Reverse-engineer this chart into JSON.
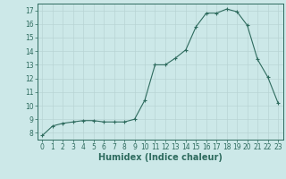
{
  "x": [
    0,
    1,
    2,
    3,
    4,
    5,
    6,
    7,
    8,
    9,
    10,
    11,
    12,
    13,
    14,
    15,
    16,
    17,
    18,
    19,
    20,
    21,
    22,
    23
  ],
  "y": [
    7.8,
    8.5,
    8.7,
    8.8,
    8.9,
    8.9,
    8.8,
    8.8,
    8.8,
    9.0,
    10.4,
    13.0,
    13.0,
    13.5,
    14.1,
    15.8,
    16.8,
    16.8,
    17.1,
    16.9,
    15.9,
    13.4,
    12.1,
    10.2
  ],
  "line_color": "#2e6b5e",
  "marker": "+",
  "marker_size": 3.5,
  "marker_linewidth": 0.8,
  "background_color": "#cce8e8",
  "grid_color": "#b8d4d4",
  "xlabel": "Humidex (Indice chaleur)",
  "ylabel": "",
  "title": "",
  "xlim": [
    -0.5,
    23.5
  ],
  "ylim": [
    7.5,
    17.5
  ],
  "yticks": [
    8,
    9,
    10,
    11,
    12,
    13,
    14,
    15,
    16,
    17
  ],
  "xticks": [
    0,
    1,
    2,
    3,
    4,
    5,
    6,
    7,
    8,
    9,
    10,
    11,
    12,
    13,
    14,
    15,
    16,
    17,
    18,
    19,
    20,
    21,
    22,
    23
  ],
  "tick_label_fontsize": 5.5,
  "xlabel_fontsize": 7.0,
  "linewidth": 0.8
}
